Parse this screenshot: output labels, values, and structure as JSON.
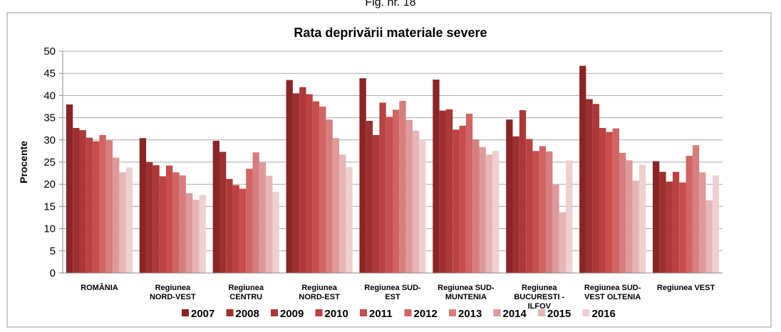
{
  "chart_data": {
    "type": "bar",
    "figure_label": "Fig. nr. 18",
    "title": "Rata deprivării materiale severe",
    "y_label": "Procente",
    "categories": [
      "ROMÂNIA",
      "Regiunea\nNORD-VEST",
      "Regiunea\nCENTRU",
      "Regiunea\nNORD-EST",
      "Regiunea SUD-\nEST",
      "Regiunea SUD-\nMUNTENIA",
      "Regiunea\nBUCURESTI -\nILFOV",
      "Regiunea SUD-\nVEST OLTENIA",
      "Regiunea VEST"
    ],
    "series": [
      {
        "name": "2007",
        "color": "#8b2525",
        "values": [
          38,
          30.4,
          29.8,
          43.5,
          43.9,
          43.6,
          34.6,
          46.7,
          25.2
        ]
      },
      {
        "name": "2008",
        "color": "#9c2f2f",
        "values": [
          32.7,
          25,
          27.3,
          40.5,
          34.3,
          36.6,
          30.8,
          39.2,
          22.8
        ]
      },
      {
        "name": "2009",
        "color": "#ad3838",
        "values": [
          32.2,
          24.3,
          21.2,
          41.9,
          31.1,
          36.9,
          36.7,
          38.1,
          20.6
        ]
      },
      {
        "name": "2010",
        "color": "#bb4242",
        "values": [
          30.5,
          21.8,
          19.8,
          40.3,
          38.4,
          32.3,
          30.2,
          32.7,
          22.8
        ]
      },
      {
        "name": "2011",
        "color": "#c94d4d",
        "values": [
          29.7,
          24.2,
          19,
          38.7,
          35.2,
          33.2,
          27.5,
          31.8,
          20.4
        ]
      },
      {
        "name": "2012",
        "color": "#d16464",
        "values": [
          31.1,
          22.7,
          23.5,
          37.5,
          36.8,
          35.9,
          28.6,
          32.6,
          26.4
        ]
      },
      {
        "name": "2013",
        "color": "#d77e7e",
        "values": [
          29.9,
          22,
          27.2,
          34.6,
          38.8,
          30.1,
          27.4,
          27.1,
          28.8
        ]
      },
      {
        "name": "2014",
        "color": "#de9a9a",
        "values": [
          26,
          18,
          25,
          30.4,
          34.5,
          28.4,
          19.9,
          25.4,
          22.7
        ]
      },
      {
        "name": "2015",
        "color": "#e6b6b6",
        "values": [
          22.7,
          16.5,
          21.9,
          26.7,
          32.1,
          26.7,
          13.7,
          20.8,
          16.4
        ]
      },
      {
        "name": "2016",
        "color": "#efd0d0",
        "values": [
          23.8,
          17.6,
          18.3,
          23.9,
          30.1,
          27.5,
          25.4,
          24.4,
          22
        ]
      }
    ],
    "ylim": [
      0,
      50
    ],
    "yticks": [
      0,
      5,
      10,
      15,
      20,
      25,
      30,
      35,
      40,
      45,
      50
    ],
    "grid": true,
    "legend": "bottom"
  }
}
